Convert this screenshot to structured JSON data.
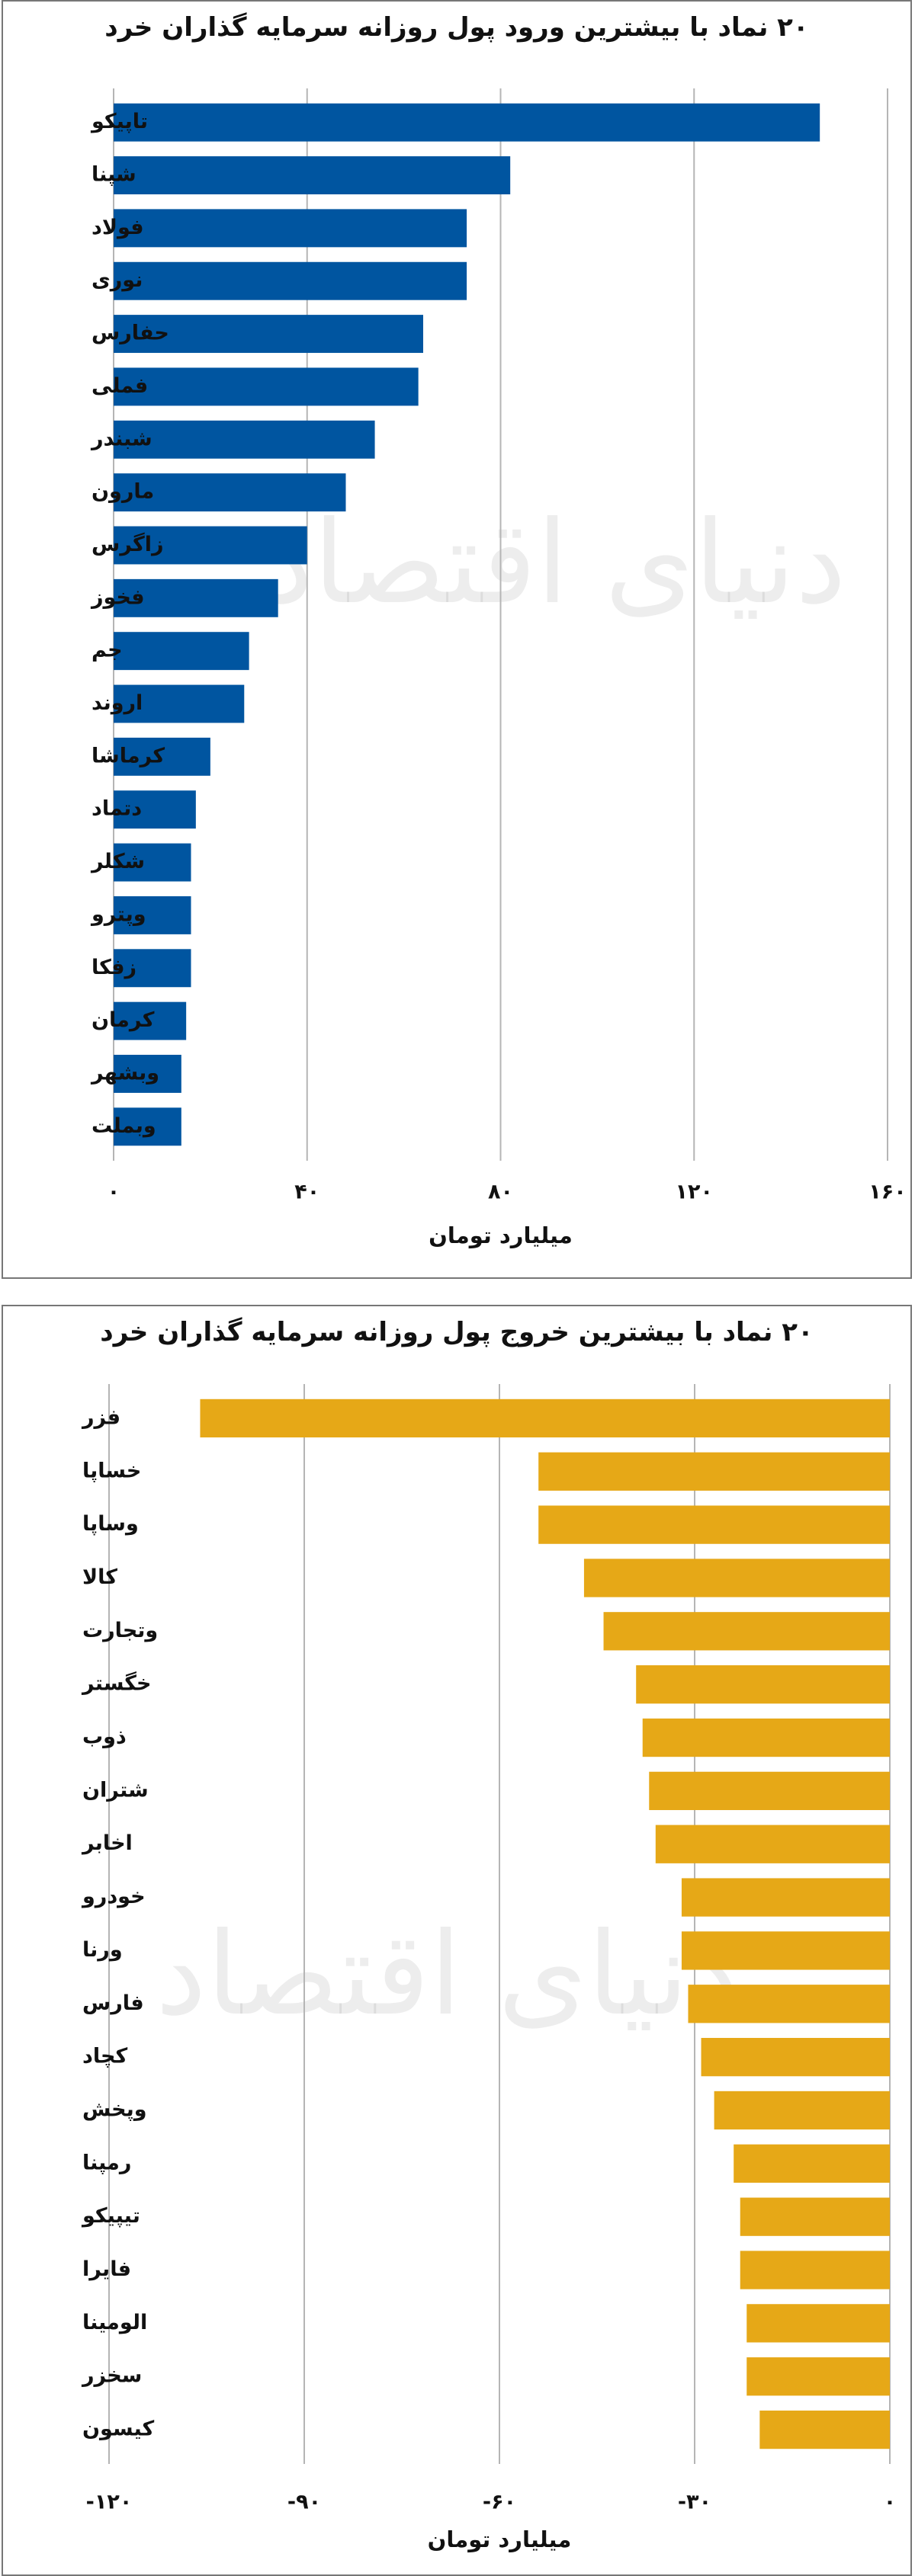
{
  "chart_data": [
    {
      "type": "bar",
      "orientation": "horizontal",
      "title": "۲۰ نماد با بیشترین ورود پول روزانه سرمایه گذاران خرد",
      "xlabel": "میلیارد تومان",
      "categories": [
        "تاپیکو",
        "شپنا",
        "فولاد",
        "نوری",
        "حفارس",
        "فملی",
        "شبندر",
        "مارون",
        "زاگرس",
        "فخوز",
        "جم",
        "اروند",
        "کرماشا",
        "دتماد",
        "شکلر",
        "وپترو",
        "زفکا",
        "کرمان",
        "وبشهر",
        "وبملت"
      ],
      "values": [
        146,
        82,
        73,
        73,
        64,
        63,
        54,
        48,
        40,
        34,
        28,
        27,
        20,
        17,
        16,
        16,
        16,
        15,
        14,
        14
      ],
      "xlim": [
        0,
        160
      ],
      "xticks": [
        0,
        40,
        80,
        120,
        160
      ],
      "xtick_labels": [
        "۰",
        "۴۰",
        "۸۰",
        "۱۲۰",
        "۱۶۰"
      ],
      "bar_color": "#0055a0",
      "grid": true,
      "watermark": "دنیای اقتصاد"
    },
    {
      "type": "bar",
      "orientation": "horizontal",
      "title": "۲۰ نماد با بیشترین خروج پول روزانه سرمایه گذاران خرد",
      "xlabel": "میلیارد تومان",
      "categories": [
        "فزر",
        "خساپا",
        "وساپا",
        "کالا",
        "وتجارت",
        "خگستر",
        "ذوب",
        "شتران",
        "اخابر",
        "خودرو",
        "ورنا",
        "فارس",
        "کچاد",
        "وپخش",
        "رمپنا",
        "تیپیکو",
        "فایرا",
        "الومینا",
        "سخزر",
        "کیسون"
      ],
      "values": [
        -106,
        -54,
        -54,
        -47,
        -44,
        -39,
        -38,
        -37,
        -36,
        -32,
        -32,
        -31,
        -29,
        -27,
        -24,
        -23,
        -23,
        -22,
        -22,
        -20
      ],
      "xlim": [
        -120,
        0
      ],
      "xticks": [
        -120,
        -90,
        -60,
        -30,
        0
      ],
      "xtick_labels": [
        "-۱۲۰",
        "-۹۰",
        "-۶۰",
        "-۳۰",
        "۰"
      ],
      "bar_color": "#e6a817",
      "grid": true,
      "watermark": "دنیای اقتصاد"
    }
  ]
}
